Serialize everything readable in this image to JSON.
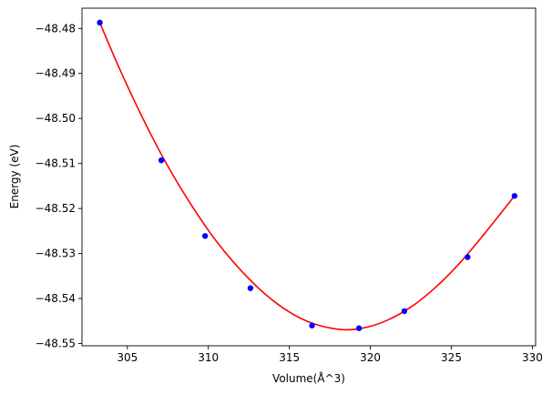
{
  "chart_data": {
    "type": "scatter",
    "title": "",
    "xlabel": "Volume(Å^3)",
    "ylabel": "Energy (eV)",
    "xlim": [
      302.2,
      330.2
    ],
    "ylim": [
      -48.5505,
      -48.4755
    ],
    "grid": false,
    "xticks": [
      305,
      310,
      315,
      320,
      325,
      330
    ],
    "xtick_labels": [
      "305",
      "310",
      "315",
      "320",
      "325",
      "330"
    ],
    "yticks": [
      -48.48,
      -48.49,
      -48.5,
      -48.51,
      -48.52,
      -48.53,
      -48.54,
      -48.55
    ],
    "ytick_labels": [
      "−48.48",
      "−48.49",
      "−48.50",
      "−48.51",
      "−48.52",
      "−48.53",
      "−48.54",
      "−48.55"
    ],
    "series": [
      {
        "kind": "points",
        "color": "#0000ff",
        "x": [
          303.3,
          307.1,
          309.8,
          312.6,
          316.4,
          319.3,
          322.1,
          326.0,
          328.9
        ],
        "y": [
          -48.4787,
          -48.5093,
          -48.5261,
          -48.5377,
          -48.546,
          -48.5466,
          -48.5428,
          -48.5308,
          -48.5172
        ]
      },
      {
        "kind": "fit-curve",
        "color": "#ff0000",
        "x": [
          303.3,
          304.5,
          306.0,
          307.5,
          309.0,
          310.5,
          312.0,
          313.5,
          315.0,
          316.5,
          318.2,
          319.5,
          321.0,
          322.5,
          324.0,
          325.5,
          327.0,
          328.9
        ],
        "y": [
          -48.4787,
          -48.4888,
          -48.5003,
          -48.5106,
          -48.5195,
          -48.5273,
          -48.5337,
          -48.539,
          -48.543,
          -48.5456,
          -48.5469,
          -48.5466,
          -48.5449,
          -48.5419,
          -48.5376,
          -48.5322,
          -48.5258,
          -48.5172
        ]
      }
    ]
  }
}
